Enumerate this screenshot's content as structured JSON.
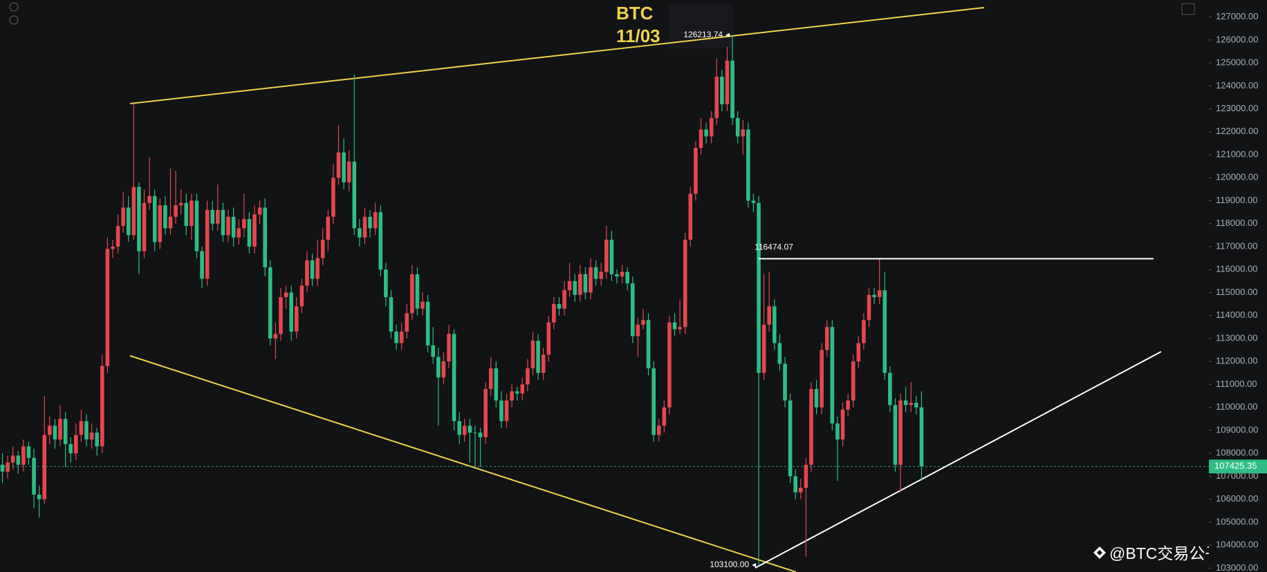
{
  "chart_data": {
    "type": "candlestick",
    "title": "BTC",
    "subtitle": "11/03",
    "up_color": "#e5474f",
    "down_color": "#2ebd85",
    "line_color": "#f0d34a",
    "ylim": [
      102830,
      127740
    ],
    "yticks": [
      {
        "value": 103000,
        "label": "103000.00"
      },
      {
        "value": 104000,
        "label": "104000.00"
      },
      {
        "value": 105000,
        "label": "105000.00"
      },
      {
        "value": 106000,
        "label": "106000.00"
      },
      {
        "value": 107000,
        "label": "107000.00"
      },
      {
        "value": 108000,
        "label": "108000.00"
      },
      {
        "value": 109000,
        "label": "109000.00"
      },
      {
        "value": 110000,
        "label": "110000.00"
      },
      {
        "value": 111000,
        "label": "111000.00"
      },
      {
        "value": 112000,
        "label": "112000.00"
      },
      {
        "value": 113000,
        "label": "113000.00"
      },
      {
        "value": 114000,
        "label": "114000.00"
      },
      {
        "value": 115000,
        "label": "115000.00"
      },
      {
        "value": 116000,
        "label": "116000.00"
      },
      {
        "value": 117000,
        "label": "117000.00"
      },
      {
        "value": 118000,
        "label": "118000.00"
      },
      {
        "value": 119000,
        "label": "119000.00"
      },
      {
        "value": 120000,
        "label": "120000.00"
      },
      {
        "value": 121000,
        "label": "121000.00"
      },
      {
        "value": 122000,
        "label": "122000.00"
      },
      {
        "value": 123000,
        "label": "123000.00"
      },
      {
        "value": 124000,
        "label": "124000.00"
      },
      {
        "value": 125000,
        "label": "125000.00"
      },
      {
        "value": 126000,
        "label": "126000.00"
      },
      {
        "value": 127000,
        "label": "127000.00"
      }
    ],
    "last_price": 107425.35,
    "high_mark": 126213.74,
    "resistance": 116474.07,
    "low_mark": {
      "value": 103100,
      "label": "103100.00"
    },
    "watermark": "@BTC交易公子扶苏",
    "ohlc": [
      [
        107500,
        108000,
        106700,
        107200
      ],
      [
        107200,
        107900,
        106900,
        107600
      ],
      [
        107600,
        108300,
        107300,
        107900
      ],
      [
        107900,
        108100,
        107100,
        107500
      ],
      [
        107500,
        108600,
        107200,
        108300
      ],
      [
        108300,
        108500,
        107500,
        107800
      ],
      [
        107800,
        108200,
        105600,
        106200
      ],
      [
        106200,
        106600,
        105200,
        106000
      ],
      [
        106000,
        110500,
        105800,
        108800
      ],
      [
        108800,
        109600,
        108400,
        109200
      ],
      [
        109200,
        109500,
        108200,
        108600
      ],
      [
        108600,
        110100,
        108300,
        109500
      ],
      [
        109500,
        109800,
        107400,
        108400
      ],
      [
        108400,
        108700,
        107600,
        108000
      ],
      [
        108000,
        109300,
        107700,
        108800
      ],
      [
        108800,
        109900,
        108500,
        109400
      ],
      [
        109400,
        109700,
        108300,
        108600
      ],
      [
        108600,
        109300,
        108200,
        108900
      ],
      [
        108900,
        109100,
        107900,
        108300
      ],
      [
        108300,
        112300,
        108000,
        111800
      ],
      [
        111800,
        117400,
        111500,
        116900
      ],
      [
        116900,
        117300,
        116500,
        117000
      ],
      [
        117000,
        118400,
        116700,
        117900
      ],
      [
        117900,
        119400,
        117600,
        118700
      ],
      [
        118700,
        119200,
        117200,
        117500
      ],
      [
        117500,
        123200,
        117300,
        119600
      ],
      [
        119600,
        119800,
        115800,
        116800
      ],
      [
        116800,
        119500,
        116500,
        118900
      ],
      [
        118900,
        120900,
        118600,
        119200
      ],
      [
        119200,
        119500,
        116800,
        117200
      ],
      [
        117200,
        119100,
        116900,
        118800
      ],
      [
        118800,
        119200,
        117500,
        117800
      ],
      [
        117800,
        120400,
        117500,
        118300
      ],
      [
        118300,
        120300,
        118000,
        118800
      ],
      [
        118800,
        119500,
        118400,
        118900
      ],
      [
        118900,
        119300,
        117500,
        117900
      ],
      [
        117900,
        119300,
        117300,
        119000
      ],
      [
        119000,
        119300,
        116500,
        116800
      ],
      [
        116800,
        117000,
        115200,
        115600
      ],
      [
        115600,
        119000,
        115300,
        118600
      ],
      [
        118600,
        119000,
        117700,
        118000
      ],
      [
        118000,
        119700,
        117700,
        118600
      ],
      [
        118600,
        118900,
        117200,
        117500
      ],
      [
        117500,
        118600,
        117200,
        118300
      ],
      [
        118300,
        118700,
        117000,
        117400
      ],
      [
        117400,
        118200,
        117100,
        117800
      ],
      [
        117800,
        119300,
        117400,
        118200
      ],
      [
        118200,
        118500,
        116700,
        117000
      ],
      [
        117000,
        118800,
        116700,
        118400
      ],
      [
        118400,
        119000,
        118000,
        118700
      ],
      [
        118700,
        119100,
        115700,
        116100
      ],
      [
        116100,
        116400,
        112700,
        113000
      ],
      [
        113000,
        113700,
        112100,
        113200
      ],
      [
        113200,
        115200,
        112900,
        114800
      ],
      [
        114800,
        115300,
        114300,
        115000
      ],
      [
        115000,
        115300,
        112900,
        113300
      ],
      [
        113300,
        114800,
        113000,
        114400
      ],
      [
        114400,
        115600,
        114100,
        115300
      ],
      [
        115300,
        116800,
        115000,
        116400
      ],
      [
        116400,
        116700,
        115300,
        115600
      ],
      [
        115600,
        117300,
        115300,
        116500
      ],
      [
        116500,
        117800,
        116200,
        117300
      ],
      [
        117300,
        118600,
        116800,
        118300
      ],
      [
        118300,
        120600,
        118000,
        120000
      ],
      [
        120000,
        122300,
        119700,
        121100
      ],
      [
        121100,
        121700,
        119500,
        119800
      ],
      [
        119800,
        121200,
        119400,
        120700
      ],
      [
        120700,
        124500,
        117500,
        117800
      ],
      [
        117800,
        118200,
        117000,
        117400
      ],
      [
        117400,
        118700,
        117100,
        118300
      ],
      [
        118300,
        118600,
        117400,
        117800
      ],
      [
        117800,
        118900,
        117500,
        118500
      ],
      [
        118500,
        118800,
        115700,
        116000
      ],
      [
        116000,
        116300,
        114400,
        114800
      ],
      [
        114800,
        115100,
        113000,
        113300
      ],
      [
        113300,
        113600,
        112500,
        112800
      ],
      [
        112800,
        113700,
        112500,
        113300
      ],
      [
        113300,
        114500,
        113000,
        114100
      ],
      [
        114100,
        116200,
        113800,
        115800
      ],
      [
        115800,
        116100,
        114000,
        114300
      ],
      [
        114300,
        115000,
        114000,
        114600
      ],
      [
        114600,
        114900,
        112400,
        112700
      ],
      [
        112700,
        113500,
        111900,
        112200
      ],
      [
        112200,
        112600,
        109200,
        111300
      ],
      [
        111300,
        112400,
        111000,
        112000
      ],
      [
        112000,
        113600,
        111700,
        113200
      ],
      [
        113200,
        113400,
        109000,
        109400
      ],
      [
        109400,
        109800,
        108400,
        108800
      ],
      [
        108800,
        109500,
        108500,
        109200
      ],
      [
        109200,
        109500,
        107600,
        108900
      ],
      [
        108900,
        109200,
        107400,
        108900
      ],
      [
        108900,
        109100,
        107400,
        108700
      ],
      [
        108700,
        111100,
        108400,
        110800
      ],
      [
        110800,
        112200,
        110500,
        111700
      ],
      [
        111700,
        112000,
        110000,
        110300
      ],
      [
        110300,
        110700,
        109100,
        109400
      ],
      [
        109400,
        110600,
        109100,
        110300
      ],
      [
        110300,
        111000,
        110000,
        110700
      ],
      [
        110700,
        110900,
        110300,
        110600
      ],
      [
        110600,
        111300,
        110300,
        111000
      ],
      [
        111000,
        112100,
        110700,
        111700
      ],
      [
        111700,
        113300,
        111400,
        112900
      ],
      [
        112900,
        113200,
        111200,
        111500
      ],
      [
        111500,
        112600,
        111200,
        112300
      ],
      [
        112300,
        114000,
        112000,
        113700
      ],
      [
        113700,
        114800,
        113400,
        114500
      ],
      [
        114500,
        114800,
        114000,
        114300
      ],
      [
        114300,
        115500,
        114000,
        115100
      ],
      [
        115100,
        116300,
        114800,
        115500
      ],
      [
        115500,
        115800,
        114600,
        114900
      ],
      [
        114900,
        116200,
        114600,
        115800
      ],
      [
        115800,
        116100,
        114700,
        115000
      ],
      [
        115000,
        116500,
        114700,
        116100
      ],
      [
        116100,
        116400,
        115300,
        115600
      ],
      [
        115600,
        116300,
        115300,
        115900
      ],
      [
        115900,
        117900,
        115600,
        117300
      ],
      [
        117300,
        117700,
        115500,
        115800
      ],
      [
        115800,
        116000,
        115400,
        115700
      ],
      [
        115700,
        116200,
        115400,
        115900
      ],
      [
        115900,
        116100,
        115100,
        115400
      ],
      [
        115400,
        115700,
        112800,
        113100
      ],
      [
        113100,
        113900,
        112200,
        113600
      ],
      [
        113600,
        114300,
        113400,
        113800
      ],
      [
        113800,
        114100,
        111400,
        111700
      ],
      [
        111700,
        112000,
        108500,
        108800
      ],
      [
        108800,
        109500,
        108500,
        109200
      ],
      [
        109200,
        110300,
        108900,
        110000
      ],
      [
        110000,
        114000,
        109700,
        113700
      ],
      [
        113700,
        114100,
        113100,
        113400
      ],
      [
        113400,
        114700,
        113200,
        113500
      ],
      [
        113500,
        117600,
        113200,
        117300
      ],
      [
        117300,
        119600,
        117000,
        119300
      ],
      [
        119300,
        121600,
        119000,
        121300
      ],
      [
        121300,
        122600,
        121000,
        122100
      ],
      [
        122100,
        122400,
        121500,
        121800
      ],
      [
        121800,
        122900,
        121500,
        122600
      ],
      [
        122600,
        125200,
        122300,
        124400
      ],
      [
        124400,
        124700,
        122900,
        123200
      ],
      [
        123200,
        125700,
        122900,
        125100
      ],
      [
        125100,
        126213.74,
        122300,
        122600
      ],
      [
        122600,
        122900,
        121500,
        121800
      ],
      [
        121800,
        122500,
        121000,
        122100
      ],
      [
        122100,
        122400,
        118700,
        119000
      ],
      [
        119000,
        119300,
        118500,
        118900
      ],
      [
        118900,
        119200,
        103100,
        111500
      ],
      [
        111500,
        115800,
        111200,
        113600
      ],
      [
        113600,
        115900,
        113300,
        114400
      ],
      [
        114400,
        114700,
        112500,
        112800
      ],
      [
        112800,
        113200,
        111600,
        111900
      ],
      [
        111900,
        112200,
        110000,
        110300
      ],
      [
        110300,
        110600,
        106700,
        107000
      ],
      [
        107000,
        107300,
        106000,
        106300
      ],
      [
        106300,
        106900,
        106000,
        106500
      ],
      [
        106500,
        107800,
        103500,
        107500
      ],
      [
        107500,
        111100,
        107200,
        110800
      ],
      [
        110800,
        111200,
        109700,
        110000
      ],
      [
        110000,
        112800,
        109700,
        112500
      ],
      [
        112500,
        113800,
        112200,
        113500
      ],
      [
        113500,
        113800,
        109000,
        109300
      ],
      [
        109300,
        109600,
        106800,
        108600
      ],
      [
        108600,
        110200,
        108300,
        109900
      ],
      [
        109900,
        110600,
        109600,
        110300
      ],
      [
        110300,
        112300,
        110000,
        112000
      ],
      [
        112000,
        113100,
        111700,
        112800
      ],
      [
        112800,
        114100,
        112500,
        113800
      ],
      [
        113800,
        115200,
        113500,
        114900
      ],
      [
        114900,
        115200,
        114500,
        114800
      ],
      [
        114800,
        116474.07,
        114500,
        115100
      ],
      [
        115100,
        115900,
        111200,
        111500
      ],
      [
        111500,
        111800,
        109800,
        110100
      ],
      [
        110100,
        110400,
        107200,
        107500
      ],
      [
        107500,
        110600,
        106300,
        110300
      ],
      [
        110300,
        110900,
        109800,
        110100
      ],
      [
        110100,
        111100,
        109800,
        110200
      ],
      [
        110200,
        110500,
        109700,
        110000
      ],
      [
        110000,
        110700,
        106800,
        107425.35
      ]
    ]
  }
}
